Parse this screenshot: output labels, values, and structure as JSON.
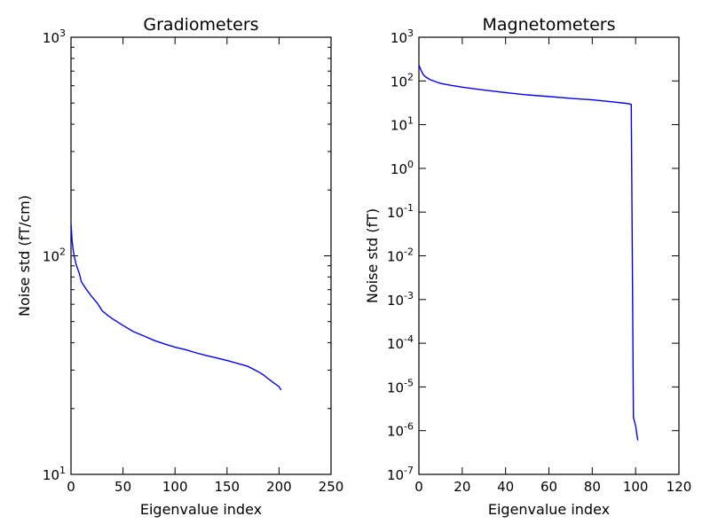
{
  "chart_data": [
    {
      "type": "line",
      "title": "Gradiometers",
      "xlabel": "Eigenvalue index",
      "ylabel": "Noise std (fT/cm)",
      "xscale": "linear",
      "yscale": "log",
      "xlim": [
        0,
        250
      ],
      "ylim": [
        10,
        1000
      ],
      "xticks": [
        0,
        50,
        100,
        150,
        200,
        250
      ],
      "xtick_labels": [
        "0",
        "50",
        "100",
        "150",
        "200",
        "250"
      ],
      "yticks": [
        {
          "value": 10,
          "base": "10",
          "exp": "1"
        },
        {
          "value": 100,
          "base": "10",
          "exp": "2"
        },
        {
          "value": 1000,
          "base": "10",
          "exp": "3"
        }
      ],
      "grid": false,
      "series": [
        {
          "color": "#0000ff",
          "x": [
            0,
            1,
            2,
            3,
            5,
            8,
            10,
            15,
            20,
            25,
            28,
            30,
            35,
            40,
            50,
            60,
            70,
            80,
            90,
            100,
            110,
            120,
            130,
            140,
            150,
            160,
            170,
            180,
            185,
            190,
            195,
            200,
            202
          ],
          "y": [
            140,
            118,
            107,
            100,
            91,
            83,
            76,
            70,
            65,
            61,
            58,
            56,
            53.5,
            51.5,
            48,
            45,
            43,
            41,
            39.5,
            38.2,
            37.2,
            36.0,
            35.0,
            34.1,
            33.2,
            32.2,
            31.2,
            29.5,
            28.5,
            27.3,
            26.2,
            25.2,
            24.3
          ]
        }
      ]
    },
    {
      "type": "line",
      "title": "Magnetometers",
      "xlabel": "Eigenvalue index",
      "ylabel": "Noise std (fT)",
      "xscale": "linear",
      "yscale": "log",
      "xlim": [
        0,
        120
      ],
      "ylim": [
        1e-07,
        1000
      ],
      "xticks": [
        0,
        20,
        40,
        60,
        80,
        100,
        120
      ],
      "xtick_labels": [
        "0",
        "20",
        "40",
        "60",
        "80",
        "100",
        "120"
      ],
      "yticks": [
        {
          "value": 1e-07,
          "base": "10",
          "exp": "-7"
        },
        {
          "value": 1e-06,
          "base": "10",
          "exp": "-6"
        },
        {
          "value": 1e-05,
          "base": "10",
          "exp": "-5"
        },
        {
          "value": 0.0001,
          "base": "10",
          "exp": "-4"
        },
        {
          "value": 0.001,
          "base": "10",
          "exp": "-3"
        },
        {
          "value": 0.01,
          "base": "10",
          "exp": "-2"
        },
        {
          "value": 0.1,
          "base": "10",
          "exp": "-1"
        },
        {
          "value": 1,
          "base": "10",
          "exp": "0"
        },
        {
          "value": 10,
          "base": "10",
          "exp": "1"
        },
        {
          "value": 100,
          "base": "10",
          "exp": "2"
        },
        {
          "value": 1000,
          "base": "10",
          "exp": "3"
        }
      ],
      "grid": false,
      "series": [
        {
          "color": "#0000ff",
          "x": [
            0,
            1,
            2,
            3,
            5,
            8,
            10,
            15,
            20,
            30,
            40,
            50,
            60,
            70,
            80,
            90,
            95,
            97,
            98,
            99,
            100,
            101
          ],
          "y": [
            230,
            175,
            140,
            125,
            108,
            95,
            88,
            79,
            72,
            62,
            54,
            48,
            44,
            40,
            37,
            33,
            31,
            30,
            29,
            2e-06,
            1.3e-06,
            6e-07
          ]
        }
      ]
    }
  ]
}
